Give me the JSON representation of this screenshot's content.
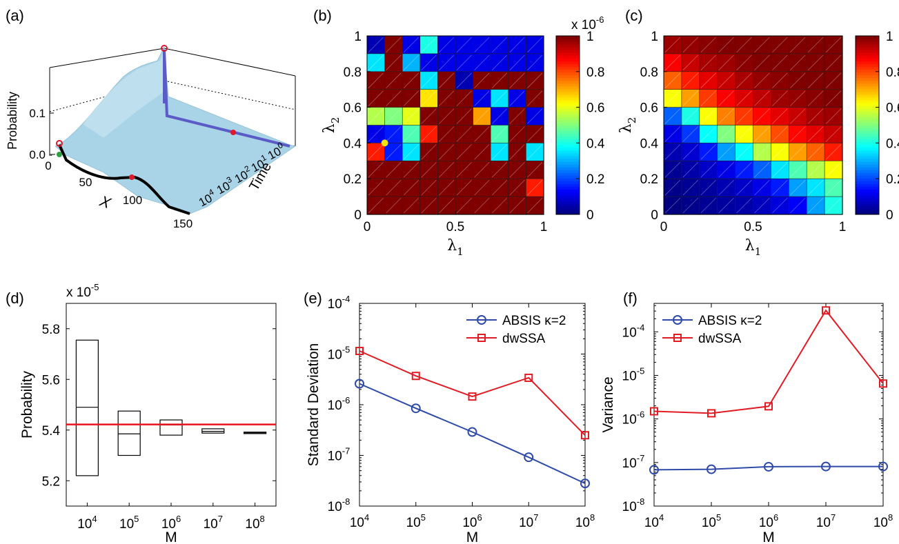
{
  "figure": {
    "panel_labels": [
      "(a)",
      "(b)",
      "(c)",
      "(d)",
      "(e)",
      "(f)"
    ]
  },
  "colors": {
    "surface": "#a9d3e6",
    "path_purple": "#5b5bc8",
    "curve_black": "#000000",
    "marker_red": "#e0182b",
    "marker_green": "#2ea043",
    "marker_yellow": "#f4e30c",
    "abs_blue": "#2e4aa8",
    "dw_red": "#e21b23",
    "ref_line": "#e8141c"
  },
  "chart_data": [
    {
      "panel": "(a)",
      "type": "area",
      "zlabel": "Probability",
      "xlabel": "X",
      "ylabel": "Time",
      "z_ticks": [
        "0.0",
        "0.1"
      ],
      "x_ticks": [
        "0",
        "50",
        "100",
        "150"
      ],
      "time_ticks": [
        {
          "base": "10",
          "exp": "0"
        },
        {
          "base": "10",
          "exp": "1"
        },
        {
          "base": "10",
          "exp": "2"
        },
        {
          "base": "10",
          "exp": "3"
        },
        {
          "base": "10",
          "exp": "4"
        }
      ]
    },
    {
      "panel": "(b)",
      "type": "heatmap",
      "xlabel": "λ",
      "xlabel_sub": "1",
      "ylabel": "λ",
      "ylabel_sub": "2",
      "xlim": [
        0,
        1
      ],
      "ylim": [
        0,
        1
      ],
      "x_ticks": [
        "0",
        "0.5",
        "1"
      ],
      "y_ticks": [
        "0",
        "0.2",
        "0.4",
        "0.6",
        "0.8",
        "1"
      ],
      "colorbar_ticks": [
        "0",
        "0.2",
        "0.4",
        "0.6",
        "0.8",
        "1"
      ],
      "colorbar_scale": {
        "prefix": "x 10",
        "exp": "-6"
      },
      "clim": [
        0,
        1
      ],
      "values": [
        [
          0.05,
          1.0,
          0.1,
          0.4,
          0.1,
          0.1,
          0.1,
          0.1,
          0.1,
          0.1
        ],
        [
          0.35,
          1.0,
          0.3,
          0.1,
          0.1,
          0.1,
          0.1,
          0.1,
          0.1,
          0.1
        ],
        [
          1.0,
          1.0,
          1.0,
          0.35,
          1.0,
          0.05,
          1.0,
          1.0,
          1.0,
          1.0
        ],
        [
          1.0,
          1.0,
          1.0,
          0.65,
          1.0,
          1.0,
          0.1,
          0.35,
          0.1,
          1.0
        ],
        [
          0.55,
          0.5,
          0.6,
          1.0,
          1.0,
          1.0,
          0.72,
          0.1,
          1.0,
          0.1
        ],
        [
          0.1,
          0.15,
          0.45,
          0.85,
          1.0,
          1.0,
          1.0,
          0.45,
          1.0,
          1.0
        ],
        [
          0.85,
          0.15,
          0.35,
          1.0,
          1.0,
          1.0,
          1.0,
          0.35,
          1.0,
          0.35
        ],
        [
          1.0,
          1.0,
          1.0,
          1.0,
          1.0,
          1.0,
          1.0,
          1.0,
          1.0,
          1.0
        ],
        [
          1.0,
          1.0,
          1.0,
          1.0,
          1.0,
          1.0,
          1.0,
          1.0,
          1.0,
          0.85
        ],
        [
          1.0,
          1.0,
          1.0,
          1.0,
          1.0,
          1.0,
          1.0,
          1.0,
          1.0,
          1.0
        ]
      ],
      "marker": {
        "x": 0.1,
        "y": 0.4
      }
    },
    {
      "panel": "(c)",
      "type": "heatmap",
      "xlabel": "λ",
      "xlabel_sub": "1",
      "ylabel": "λ",
      "ylabel_sub": "2",
      "xlim": [
        0,
        1
      ],
      "ylim": [
        0,
        1
      ],
      "x_ticks": [
        "0",
        "0.5",
        "1"
      ],
      "y_ticks": [
        "0",
        "0.2",
        "0.4",
        "0.6",
        "0.8",
        "1"
      ],
      "colorbar_ticks": [
        "0",
        "0.2",
        "0.4",
        "0.6",
        "0.8",
        "1"
      ],
      "clim": [
        0,
        1
      ],
      "values": [
        [
          0.97,
          0.98,
          0.99,
          1.0,
          1.0,
          1.0,
          1.0,
          1.0,
          1.0,
          1.0
        ],
        [
          0.88,
          0.93,
          0.96,
          0.97,
          0.99,
          1.0,
          1.0,
          1.0,
          1.0,
          1.0
        ],
        [
          0.78,
          0.85,
          0.9,
          0.93,
          0.96,
          0.98,
          0.99,
          1.0,
          1.0,
          1.0
        ],
        [
          0.62,
          0.72,
          0.82,
          0.88,
          0.91,
          0.94,
          0.97,
          0.98,
          0.99,
          1.0
        ],
        [
          0.22,
          0.4,
          0.62,
          0.75,
          0.82,
          0.87,
          0.9,
          0.93,
          0.96,
          0.97
        ],
        [
          0.1,
          0.18,
          0.38,
          0.5,
          0.62,
          0.72,
          0.8,
          0.87,
          0.9,
          0.93
        ],
        [
          0.05,
          0.08,
          0.15,
          0.28,
          0.38,
          0.55,
          0.62,
          0.72,
          0.78,
          0.85
        ],
        [
          0.02,
          0.04,
          0.07,
          0.1,
          0.15,
          0.22,
          0.35,
          0.45,
          0.55,
          0.62
        ],
        [
          0.01,
          0.02,
          0.03,
          0.05,
          0.07,
          0.1,
          0.15,
          0.28,
          0.35,
          0.45
        ],
        [
          0.0,
          0.01,
          0.02,
          0.03,
          0.04,
          0.06,
          0.09,
          0.12,
          0.28,
          0.4
        ]
      ]
    },
    {
      "panel": "(d)",
      "type": "box",
      "xlabel": "M",
      "ylabel": "Probability",
      "y_scale": {
        "prefix": "x 10",
        "exp": "-5"
      },
      "ylim": [
        5.1,
        5.9
      ],
      "y_ticks": [
        "5.2",
        "5.4",
        "5.6",
        "5.8"
      ],
      "categories": [
        {
          "base": "10",
          "exp": "4"
        },
        {
          "base": "10",
          "exp": "5"
        },
        {
          "base": "10",
          "exp": "6"
        },
        {
          "base": "10",
          "exp": "7"
        },
        {
          "base": "10",
          "exp": "8"
        }
      ],
      "boxes": [
        {
          "low": 5.22,
          "median": 5.49,
          "high": 5.755
        },
        {
          "low": 5.3,
          "median": 5.385,
          "high": 5.475
        },
        {
          "low": 5.38,
          "median": 5.42,
          "high": 5.44
        },
        {
          "low": 5.388,
          "median": 5.395,
          "high": 5.405
        },
        {
          "low": 5.386,
          "median": 5.389,
          "high": 5.392
        }
      ],
      "reference": 5.422
    },
    {
      "panel": "(e)",
      "type": "line",
      "log_x": true,
      "log_y": true,
      "xlabel": "M",
      "ylabel": "Standard Deviation",
      "x_ticks": [
        {
          "base": "10",
          "exp": "4"
        },
        {
          "base": "10",
          "exp": "5"
        },
        {
          "base": "10",
          "exp": "6"
        },
        {
          "base": "10",
          "exp": "7"
        },
        {
          "base": "10",
          "exp": "8"
        }
      ],
      "y_ticks": [
        {
          "base": "10",
          "exp": "-8"
        },
        {
          "base": "10",
          "exp": "-7"
        },
        {
          "base": "10",
          "exp": "-6"
        },
        {
          "base": "10",
          "exp": "-5"
        },
        {
          "base": "10",
          "exp": "-4"
        }
      ],
      "xlim": [
        10000,
        100000000
      ],
      "ylim": [
        1e-08,
        0.0001
      ],
      "legend_position": "top-right",
      "series": [
        {
          "name": "ABSIS κ=2",
          "marker": "circle",
          "x": [
            10000,
            100000,
            1000000,
            10000000,
            100000000
          ],
          "y": [
            2.6e-06,
            8.5e-07,
            2.9e-07,
            9.2e-08,
            2.8e-08
          ]
        },
        {
          "name": "dwSSA",
          "marker": "square",
          "x": [
            10000,
            100000,
            1000000,
            10000000,
            100000000
          ],
          "y": [
            1.15e-05,
            3.7e-06,
            1.45e-06,
            3.4e-06,
            2.5e-07
          ]
        }
      ]
    },
    {
      "panel": "(f)",
      "type": "line",
      "log_x": true,
      "log_y": true,
      "xlabel": "M",
      "ylabel": "Variance",
      "x_ticks": [
        {
          "base": "10",
          "exp": "4"
        },
        {
          "base": "10",
          "exp": "5"
        },
        {
          "base": "10",
          "exp": "6"
        },
        {
          "base": "10",
          "exp": "7"
        },
        {
          "base": "10",
          "exp": "8"
        }
      ],
      "y_ticks": [
        {
          "base": "10",
          "exp": "-8"
        },
        {
          "base": "10",
          "exp": "-7"
        },
        {
          "base": "10",
          "exp": "-6"
        },
        {
          "base": "10",
          "exp": "-5"
        },
        {
          "base": "10",
          "exp": "-4"
        }
      ],
      "xlim": [
        10000,
        100000000
      ],
      "ylim": [
        1e-08,
        0.00045
      ],
      "legend_position": "top-left",
      "series": [
        {
          "name": "ABSIS κ=2",
          "marker": "circle",
          "x": [
            10000,
            100000,
            1000000,
            10000000,
            100000000
          ],
          "y": [
            6.8e-08,
            7e-08,
            8e-08,
            8.1e-08,
            8.1e-08
          ]
        },
        {
          "name": "dwSSA",
          "marker": "square",
          "x": [
            10000,
            100000,
            1000000,
            10000000,
            100000000
          ],
          "y": [
            1.5e-06,
            1.35e-06,
            1.95e-06,
            0.00031,
            6.5e-06
          ]
        }
      ]
    }
  ]
}
